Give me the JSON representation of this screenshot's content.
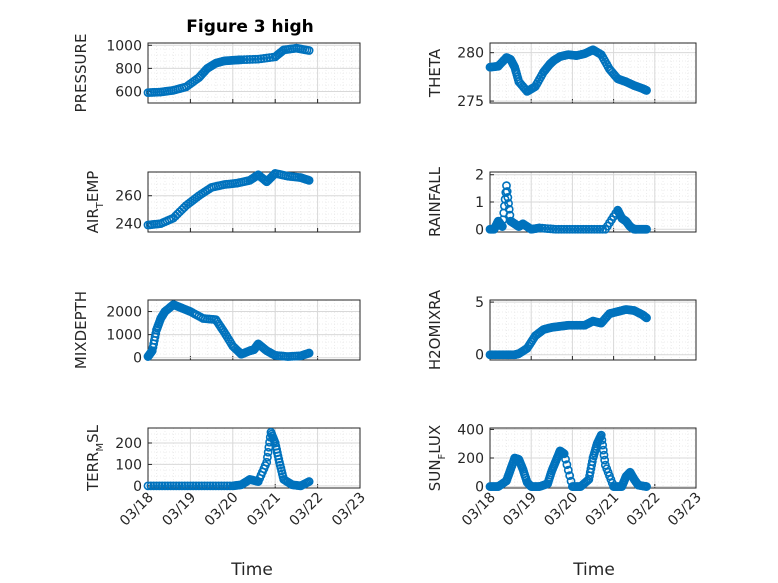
{
  "figure": {
    "title": "Figure 3 high",
    "xlabel": "Time"
  },
  "colors": {
    "marker": "#0072BD",
    "axis": "#262626",
    "grid": "#d9d9d9",
    "minor_grid": "#ececec"
  },
  "chart_data": [
    {
      "type": "scatter",
      "id": "pressure",
      "ylabel": "PRESSURE",
      "ylim": [
        500,
        1020
      ],
      "yticks": [
        "600",
        "800",
        "1000"
      ],
      "x": [
        0,
        0.3,
        0.6,
        0.9,
        1.2,
        1.4,
        1.6,
        1.8,
        2.0,
        2.2,
        2.6,
        3.0,
        3.2,
        3.5,
        3.8
      ],
      "y": [
        590,
        595,
        610,
        640,
        720,
        800,
        845,
        865,
        870,
        875,
        880,
        900,
        960,
        975,
        955
      ]
    },
    {
      "type": "scatter",
      "id": "theta",
      "ylabel": "THETA",
      "ylim": [
        274.8,
        281
      ],
      "yticks": [
        "275",
        "280"
      ],
      "x": [
        0,
        0.2,
        0.4,
        0.5,
        0.6,
        0.7,
        0.9,
        1.1,
        1.3,
        1.45,
        1.55,
        1.7,
        1.9,
        2.1,
        2.3,
        2.5,
        2.7,
        2.9,
        3.1,
        3.3,
        3.5,
        3.7,
        3.8
      ],
      "y": [
        278.5,
        278.6,
        279.5,
        279.3,
        278.5,
        277,
        276,
        276.5,
        278,
        278.8,
        279.2,
        279.6,
        279.8,
        279.7,
        279.9,
        280.3,
        279.8,
        278.3,
        277.3,
        277,
        276.6,
        276.3,
        276.1
      ]
    },
    {
      "type": "scatter",
      "id": "air_temp",
      "ylabel": "AIR_TEMP",
      "ylim": [
        234,
        277
      ],
      "yticks": [
        "240",
        "260"
      ],
      "x": [
        0,
        0.3,
        0.6,
        0.9,
        1.2,
        1.5,
        1.8,
        2.1,
        2.4,
        2.6,
        2.8,
        3.0,
        3.3,
        3.6,
        3.8
      ],
      "y": [
        239,
        240,
        244,
        253,
        260,
        266,
        268,
        269,
        271,
        275,
        270,
        276,
        274,
        273,
        271
      ]
    },
    {
      "type": "scatter",
      "id": "rainfall",
      "ylabel": "RAINFALL",
      "ylim": [
        -0.1,
        2.1
      ],
      "yticks": [
        "0",
        "1",
        "2"
      ],
      "x": [
        0,
        0.1,
        0.2,
        0.3,
        0.4,
        0.5,
        0.6,
        0.7,
        0.8,
        1.0,
        1.2,
        1.6,
        2.0,
        2.4,
        2.8,
        3.1,
        3.2,
        3.3,
        3.4,
        3.5,
        3.6,
        3.7,
        3.8
      ],
      "y": [
        0,
        0,
        0.3,
        0.1,
        1.6,
        0.3,
        0.2,
        0.1,
        0.2,
        0,
        0.05,
        0,
        0,
        0,
        0,
        0.7,
        0.4,
        0.3,
        0.1,
        0,
        0,
        0,
        0
      ]
    },
    {
      "type": "scatter",
      "id": "mixdepth",
      "ylabel": "MIXDEPTH",
      "ylim": [
        -100,
        2500
      ],
      "yticks": [
        "0",
        "1000",
        "2000"
      ],
      "x": [
        0,
        0.1,
        0.2,
        0.3,
        0.4,
        0.6,
        0.8,
        1.0,
        1.3,
        1.6,
        1.8,
        2.0,
        2.2,
        2.4,
        2.5,
        2.6,
        2.8,
        3.0,
        3.3,
        3.6,
        3.8
      ],
      "y": [
        50,
        300,
        1200,
        1700,
        2000,
        2300,
        2150,
        2000,
        1700,
        1650,
        1100,
        500,
        150,
        300,
        350,
        600,
        300,
        100,
        50,
        80,
        200
      ]
    },
    {
      "type": "scatter",
      "id": "h2omixra",
      "ylabel": "H2OMIXRA",
      "ylim": [
        -0.5,
        5.2
      ],
      "yticks": [
        "0",
        "5"
      ],
      "x": [
        0,
        0.2,
        0.4,
        0.6,
        0.7,
        0.9,
        1.1,
        1.3,
        1.5,
        1.7,
        1.9,
        2.1,
        2.3,
        2.5,
        2.7,
        2.9,
        3.1,
        3.3,
        3.5,
        3.7,
        3.8
      ],
      "y": [
        0,
        0,
        0,
        0,
        0.1,
        0.6,
        1.8,
        2.4,
        2.6,
        2.7,
        2.8,
        2.8,
        2.8,
        3.2,
        3.0,
        3.9,
        4.1,
        4.3,
        4.2,
        3.8,
        3.5
      ]
    },
    {
      "type": "scatter",
      "id": "terr_msl",
      "ylabel": "TERR_MSL",
      "ylim": [
        -10,
        270
      ],
      "yticks": [
        "0",
        "100",
        "200"
      ],
      "x": [
        0,
        0.4,
        0.8,
        1.2,
        1.6,
        2.0,
        2.2,
        2.4,
        2.6,
        2.8,
        2.9,
        3.0,
        3.1,
        3.2,
        3.4,
        3.6,
        3.8
      ],
      "y": [
        0,
        0,
        0,
        0,
        0,
        0,
        5,
        30,
        20,
        110,
        250,
        200,
        110,
        30,
        5,
        0,
        20
      ]
    },
    {
      "type": "scatter",
      "id": "sun_flux",
      "ylabel": "SUN_FLUX",
      "ylim": [
        -10,
        410
      ],
      "yticks": [
        "0",
        "200",
        "400"
      ],
      "x": [
        0,
        0.2,
        0.4,
        0.5,
        0.6,
        0.7,
        0.8,
        0.9,
        1.0,
        1.2,
        1.4,
        1.5,
        1.6,
        1.7,
        1.8,
        2.0,
        2.2,
        2.4,
        2.5,
        2.6,
        2.7,
        2.8,
        3.0,
        3.2,
        3.3,
        3.4,
        3.5,
        3.6,
        3.8
      ],
      "y": [
        0,
        0,
        40,
        120,
        200,
        190,
        120,
        30,
        0,
        0,
        20,
        110,
        180,
        250,
        230,
        0,
        0,
        50,
        200,
        300,
        360,
        150,
        0,
        0,
        70,
        100,
        50,
        10,
        0
      ]
    }
  ],
  "shared_x": {
    "ticks": [
      "03/18",
      "03/19",
      "03/20",
      "03/21",
      "03/22",
      "03/23"
    ]
  }
}
